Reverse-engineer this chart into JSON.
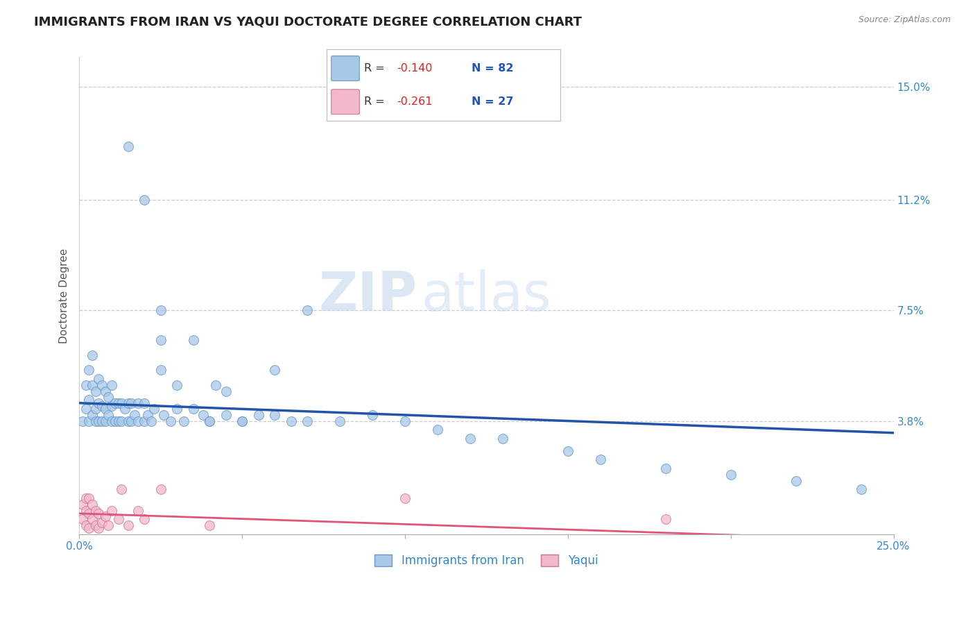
{
  "title": "IMMIGRANTS FROM IRAN VS YAQUI DOCTORATE DEGREE CORRELATION CHART",
  "source": "Source: ZipAtlas.com",
  "ylabel_label": "Doctorate Degree",
  "x_min": 0.0,
  "x_max": 0.25,
  "y_min": 0.0,
  "y_max": 0.16,
  "y_tick_labels": [
    "15.0%",
    "11.2%",
    "7.5%",
    "3.8%"
  ],
  "y_tick_values": [
    0.15,
    0.112,
    0.075,
    0.038
  ],
  "grid_color": "#cccccc",
  "background_color": "#ffffff",
  "color_iran": "#a8c8e8",
  "color_yaqui": "#f4b8cc",
  "line_color_iran": "#2255aa",
  "line_color_yaqui": "#e05575",
  "iran_scatter_x": [
    0.001,
    0.002,
    0.002,
    0.003,
    0.003,
    0.003,
    0.004,
    0.004,
    0.004,
    0.005,
    0.005,
    0.005,
    0.006,
    0.006,
    0.006,
    0.007,
    0.007,
    0.007,
    0.008,
    0.008,
    0.008,
    0.009,
    0.009,
    0.01,
    0.01,
    0.01,
    0.011,
    0.011,
    0.012,
    0.012,
    0.013,
    0.013,
    0.014,
    0.015,
    0.015,
    0.016,
    0.016,
    0.017,
    0.018,
    0.018,
    0.02,
    0.02,
    0.021,
    0.022,
    0.023,
    0.025,
    0.026,
    0.028,
    0.03,
    0.032,
    0.035,
    0.038,
    0.04,
    0.042,
    0.045,
    0.05,
    0.055,
    0.06,
    0.065,
    0.07,
    0.08,
    0.09,
    0.1,
    0.11,
    0.12,
    0.13,
    0.15,
    0.16,
    0.18,
    0.2,
    0.22,
    0.24,
    0.025,
    0.03,
    0.035,
    0.04,
    0.045,
    0.05,
    0.06,
    0.07,
    0.015,
    0.02,
    0.025
  ],
  "iran_scatter_y": [
    0.038,
    0.042,
    0.05,
    0.038,
    0.045,
    0.055,
    0.04,
    0.05,
    0.06,
    0.038,
    0.042,
    0.048,
    0.038,
    0.044,
    0.052,
    0.038,
    0.043,
    0.05,
    0.038,
    0.042,
    0.048,
    0.04,
    0.046,
    0.038,
    0.043,
    0.05,
    0.038,
    0.044,
    0.038,
    0.044,
    0.038,
    0.044,
    0.042,
    0.038,
    0.044,
    0.038,
    0.044,
    0.04,
    0.038,
    0.044,
    0.038,
    0.044,
    0.04,
    0.038,
    0.042,
    0.055,
    0.04,
    0.038,
    0.042,
    0.038,
    0.065,
    0.04,
    0.038,
    0.05,
    0.048,
    0.038,
    0.04,
    0.055,
    0.038,
    0.075,
    0.038,
    0.04,
    0.038,
    0.035,
    0.032,
    0.032,
    0.028,
    0.025,
    0.022,
    0.02,
    0.018,
    0.015,
    0.065,
    0.05,
    0.042,
    0.038,
    0.04,
    0.038,
    0.04,
    0.038,
    0.13,
    0.112,
    0.075
  ],
  "yaqui_scatter_x": [
    0.001,
    0.001,
    0.002,
    0.002,
    0.002,
    0.003,
    0.003,
    0.003,
    0.004,
    0.004,
    0.005,
    0.005,
    0.006,
    0.006,
    0.007,
    0.008,
    0.009,
    0.01,
    0.012,
    0.013,
    0.015,
    0.018,
    0.02,
    0.025,
    0.04,
    0.1,
    0.18
  ],
  "yaqui_scatter_y": [
    0.005,
    0.01,
    0.003,
    0.008,
    0.012,
    0.002,
    0.007,
    0.012,
    0.005,
    0.01,
    0.003,
    0.008,
    0.002,
    0.007,
    0.004,
    0.006,
    0.003,
    0.008,
    0.005,
    0.015,
    0.003,
    0.008,
    0.005,
    0.015,
    0.003,
    0.012,
    0.005
  ],
  "iran_line_x0": 0.0,
  "iran_line_x1": 0.25,
  "iran_line_y0": 0.044,
  "iran_line_y1": 0.034,
  "yaqui_line_x0": 0.0,
  "yaqui_line_x1": 0.25,
  "yaqui_line_y0": 0.007,
  "yaqui_line_y1": -0.002,
  "watermark_zip": "ZIP",
  "watermark_atlas": "atlas",
  "title_fontsize": 13,
  "axis_label_fontsize": 11,
  "tick_fontsize": 11
}
